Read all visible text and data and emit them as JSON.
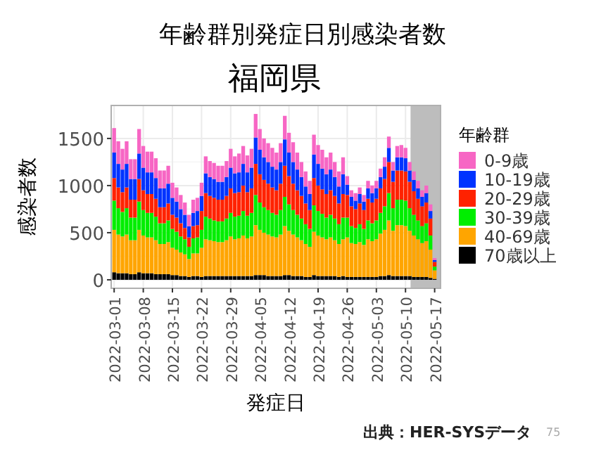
{
  "chart_data": {
    "type": "bar",
    "stacked": true,
    "title": "年齢群別発症日別感染者数",
    "subtitle": "福岡県",
    "xlabel": "発症日",
    "ylabel": "感染者数",
    "legend_title": "年齢群",
    "legend": "right",
    "grid": true,
    "annotations": [
      "出典：HER-SYSデータ",
      "75"
    ],
    "x": [
      "2022-03-01",
      "2022-03-02",
      "2022-03-03",
      "2022-03-04",
      "2022-03-05",
      "2022-03-06",
      "2022-03-07",
      "2022-03-08",
      "2022-03-09",
      "2022-03-10",
      "2022-03-11",
      "2022-03-12",
      "2022-03-13",
      "2022-03-14",
      "2022-03-15",
      "2022-03-16",
      "2022-03-17",
      "2022-03-18",
      "2022-03-19",
      "2022-03-20",
      "2022-03-21",
      "2022-03-22",
      "2022-03-23",
      "2022-03-24",
      "2022-03-25",
      "2022-03-26",
      "2022-03-27",
      "2022-03-28",
      "2022-03-29",
      "2022-03-30",
      "2022-03-31",
      "2022-04-01",
      "2022-04-02",
      "2022-04-03",
      "2022-04-04",
      "2022-04-05",
      "2022-04-06",
      "2022-04-07",
      "2022-04-08",
      "2022-04-09",
      "2022-04-10",
      "2022-04-11",
      "2022-04-12",
      "2022-04-13",
      "2022-04-14",
      "2022-04-15",
      "2022-04-16",
      "2022-04-17",
      "2022-04-18",
      "2022-04-19",
      "2022-04-20",
      "2022-04-21",
      "2022-04-22",
      "2022-04-23",
      "2022-04-24",
      "2022-04-25",
      "2022-04-26",
      "2022-04-27",
      "2022-04-28",
      "2022-04-29",
      "2022-04-30",
      "2022-05-01",
      "2022-05-02",
      "2022-05-03",
      "2022-05-04",
      "2022-05-05",
      "2022-05-06",
      "2022-05-07",
      "2022-05-08",
      "2022-05-09",
      "2022-05-10",
      "2022-05-11",
      "2022-05-12",
      "2022-05-13",
      "2022-05-14",
      "2022-05-15",
      "2022-05-16",
      "2022-05-17"
    ],
    "xlim": [
      "2022-02-28T07:00",
      "2022-05-18T10:00"
    ],
    "ylim": [
      -90,
      1850
    ],
    "xticks": [
      "2022-03-01",
      "2022-03-08",
      "2022-03-15",
      "2022-03-22",
      "2022-03-29",
      "2022-04-05",
      "2022-04-12",
      "2022-04-19",
      "2022-04-26",
      "2022-05-03",
      "2022-05-10",
      "2022-05-17"
    ],
    "yticks": [
      0,
      500,
      1000,
      1500
    ],
    "bands": [
      {
        "axis": "x",
        "from": "2022-05-11T05:00",
        "to": "2022-05-18T10:00",
        "color": "#bdbdbd"
      }
    ],
    "series": [
      {
        "name": "70歳以上",
        "color": "#000000",
        "values": [
          80,
          70,
          70,
          70,
          60,
          60,
          80,
          70,
          70,
          70,
          60,
          60,
          60,
          60,
          50,
          50,
          40,
          40,
          30,
          40,
          40,
          30,
          40,
          40,
          40,
          40,
          40,
          40,
          40,
          40,
          40,
          40,
          40,
          40,
          50,
          50,
          50,
          40,
          40,
          40,
          40,
          50,
          50,
          40,
          40,
          40,
          30,
          30,
          50,
          40,
          40,
          40,
          40,
          40,
          30,
          40,
          30,
          30,
          30,
          30,
          30,
          30,
          30,
          30,
          40,
          40,
          50,
          40,
          40,
          40,
          40,
          40,
          30,
          30,
          30,
          30,
          20,
          10
        ]
      },
      {
        "name": "40-69歳",
        "color": "#ffa500",
        "values": [
          450,
          410,
          390,
          410,
          360,
          360,
          450,
          400,
          380,
          380,
          360,
          320,
          320,
          340,
          290,
          270,
          250,
          230,
          190,
          240,
          240,
          310,
          390,
          380,
          370,
          360,
          360,
          380,
          420,
          390,
          400,
          430,
          400,
          420,
          530,
          480,
          450,
          440,
          420,
          410,
          440,
          520,
          470,
          440,
          410,
          380,
          350,
          320,
          460,
          430,
          410,
          390,
          410,
          380,
          350,
          390,
          420,
          360,
          350,
          370,
          340,
          400,
          380,
          400,
          450,
          490,
          580,
          480,
          540,
          540,
          530,
          480,
          440,
          400,
          360,
          380,
          300,
          90
        ]
      },
      {
        "name": "30-39歳",
        "color": "#00ee00",
        "values": [
          310,
          280,
          260,
          280,
          240,
          240,
          300,
          270,
          260,
          260,
          250,
          220,
          220,
          230,
          200,
          190,
          170,
          160,
          130,
          160,
          170,
          190,
          240,
          230,
          220,
          220,
          220,
          230,
          250,
          240,
          240,
          260,
          240,
          250,
          320,
          290,
          270,
          260,
          250,
          240,
          260,
          310,
          280,
          260,
          240,
          230,
          210,
          190,
          280,
          260,
          250,
          230,
          240,
          230,
          210,
          230,
          210,
          180,
          170,
          190,
          170,
          200,
          190,
          200,
          220,
          250,
          290,
          240,
          270,
          270,
          270,
          240,
          220,
          200,
          180,
          190,
          150,
          40
        ]
      },
      {
        "name": "20-29歳",
        "color": "#ff2200",
        "values": [
          240,
          220,
          210,
          220,
          190,
          190,
          240,
          210,
          200,
          200,
          190,
          170,
          170,
          180,
          150,
          150,
          140,
          120,
          100,
          130,
          130,
          200,
          250,
          240,
          240,
          230,
          230,
          240,
          260,
          250,
          250,
          270,
          250,
          260,
          330,
          300,
          290,
          280,
          270,
          260,
          280,
          330,
          300,
          280,
          260,
          240,
          220,
          200,
          290,
          270,
          260,
          250,
          260,
          240,
          220,
          250,
          240,
          210,
          200,
          220,
          200,
          230,
          220,
          230,
          260,
          290,
          330,
          280,
          310,
          310,
          310,
          280,
          250,
          230,
          210,
          220,
          180,
          50
        ]
      },
      {
        "name": "10-19歳",
        "color": "#0033ff",
        "values": [
          270,
          250,
          240,
          250,
          220,
          220,
          270,
          240,
          230,
          230,
          220,
          200,
          200,
          210,
          180,
          170,
          150,
          140,
          120,
          140,
          150,
          160,
          210,
          200,
          200,
          190,
          190,
          200,
          220,
          210,
          210,
          230,
          210,
          220,
          280,
          260,
          240,
          230,
          220,
          220,
          230,
          280,
          250,
          230,
          220,
          200,
          180,
          170,
          250,
          230,
          220,
          210,
          220,
          200,
          180,
          210,
          110,
          100,
          90,
          100,
          90,
          110,
          100,
          110,
          120,
          130,
          150,
          120,
          140,
          140,
          140,
          120,
          120,
          110,
          100,
          100,
          80,
          20
        ]
      },
      {
        "name": "0-9歳",
        "color": "#f766c4",
        "values": [
          260,
          240,
          220,
          240,
          210,
          210,
          260,
          230,
          220,
          220,
          210,
          190,
          190,
          190,
          160,
          150,
          150,
          130,
          120,
          140,
          140,
          140,
          180,
          170,
          170,
          170,
          170,
          170,
          200,
          180,
          200,
          190,
          180,
          200,
          250,
          220,
          200,
          200,
          200,
          180,
          200,
          250,
          210,
          210,
          180,
          160,
          160,
          140,
          210,
          200,
          200,
          180,
          180,
          160,
          160,
          180,
          90,
          70,
          80,
          70,
          70,
          80,
          80,
          80,
          90,
          100,
          120,
          90,
          120,
          130,
          110,
          90,
          90,
          80,
          70,
          80,
          70,
          20
        ]
      }
    ]
  }
}
